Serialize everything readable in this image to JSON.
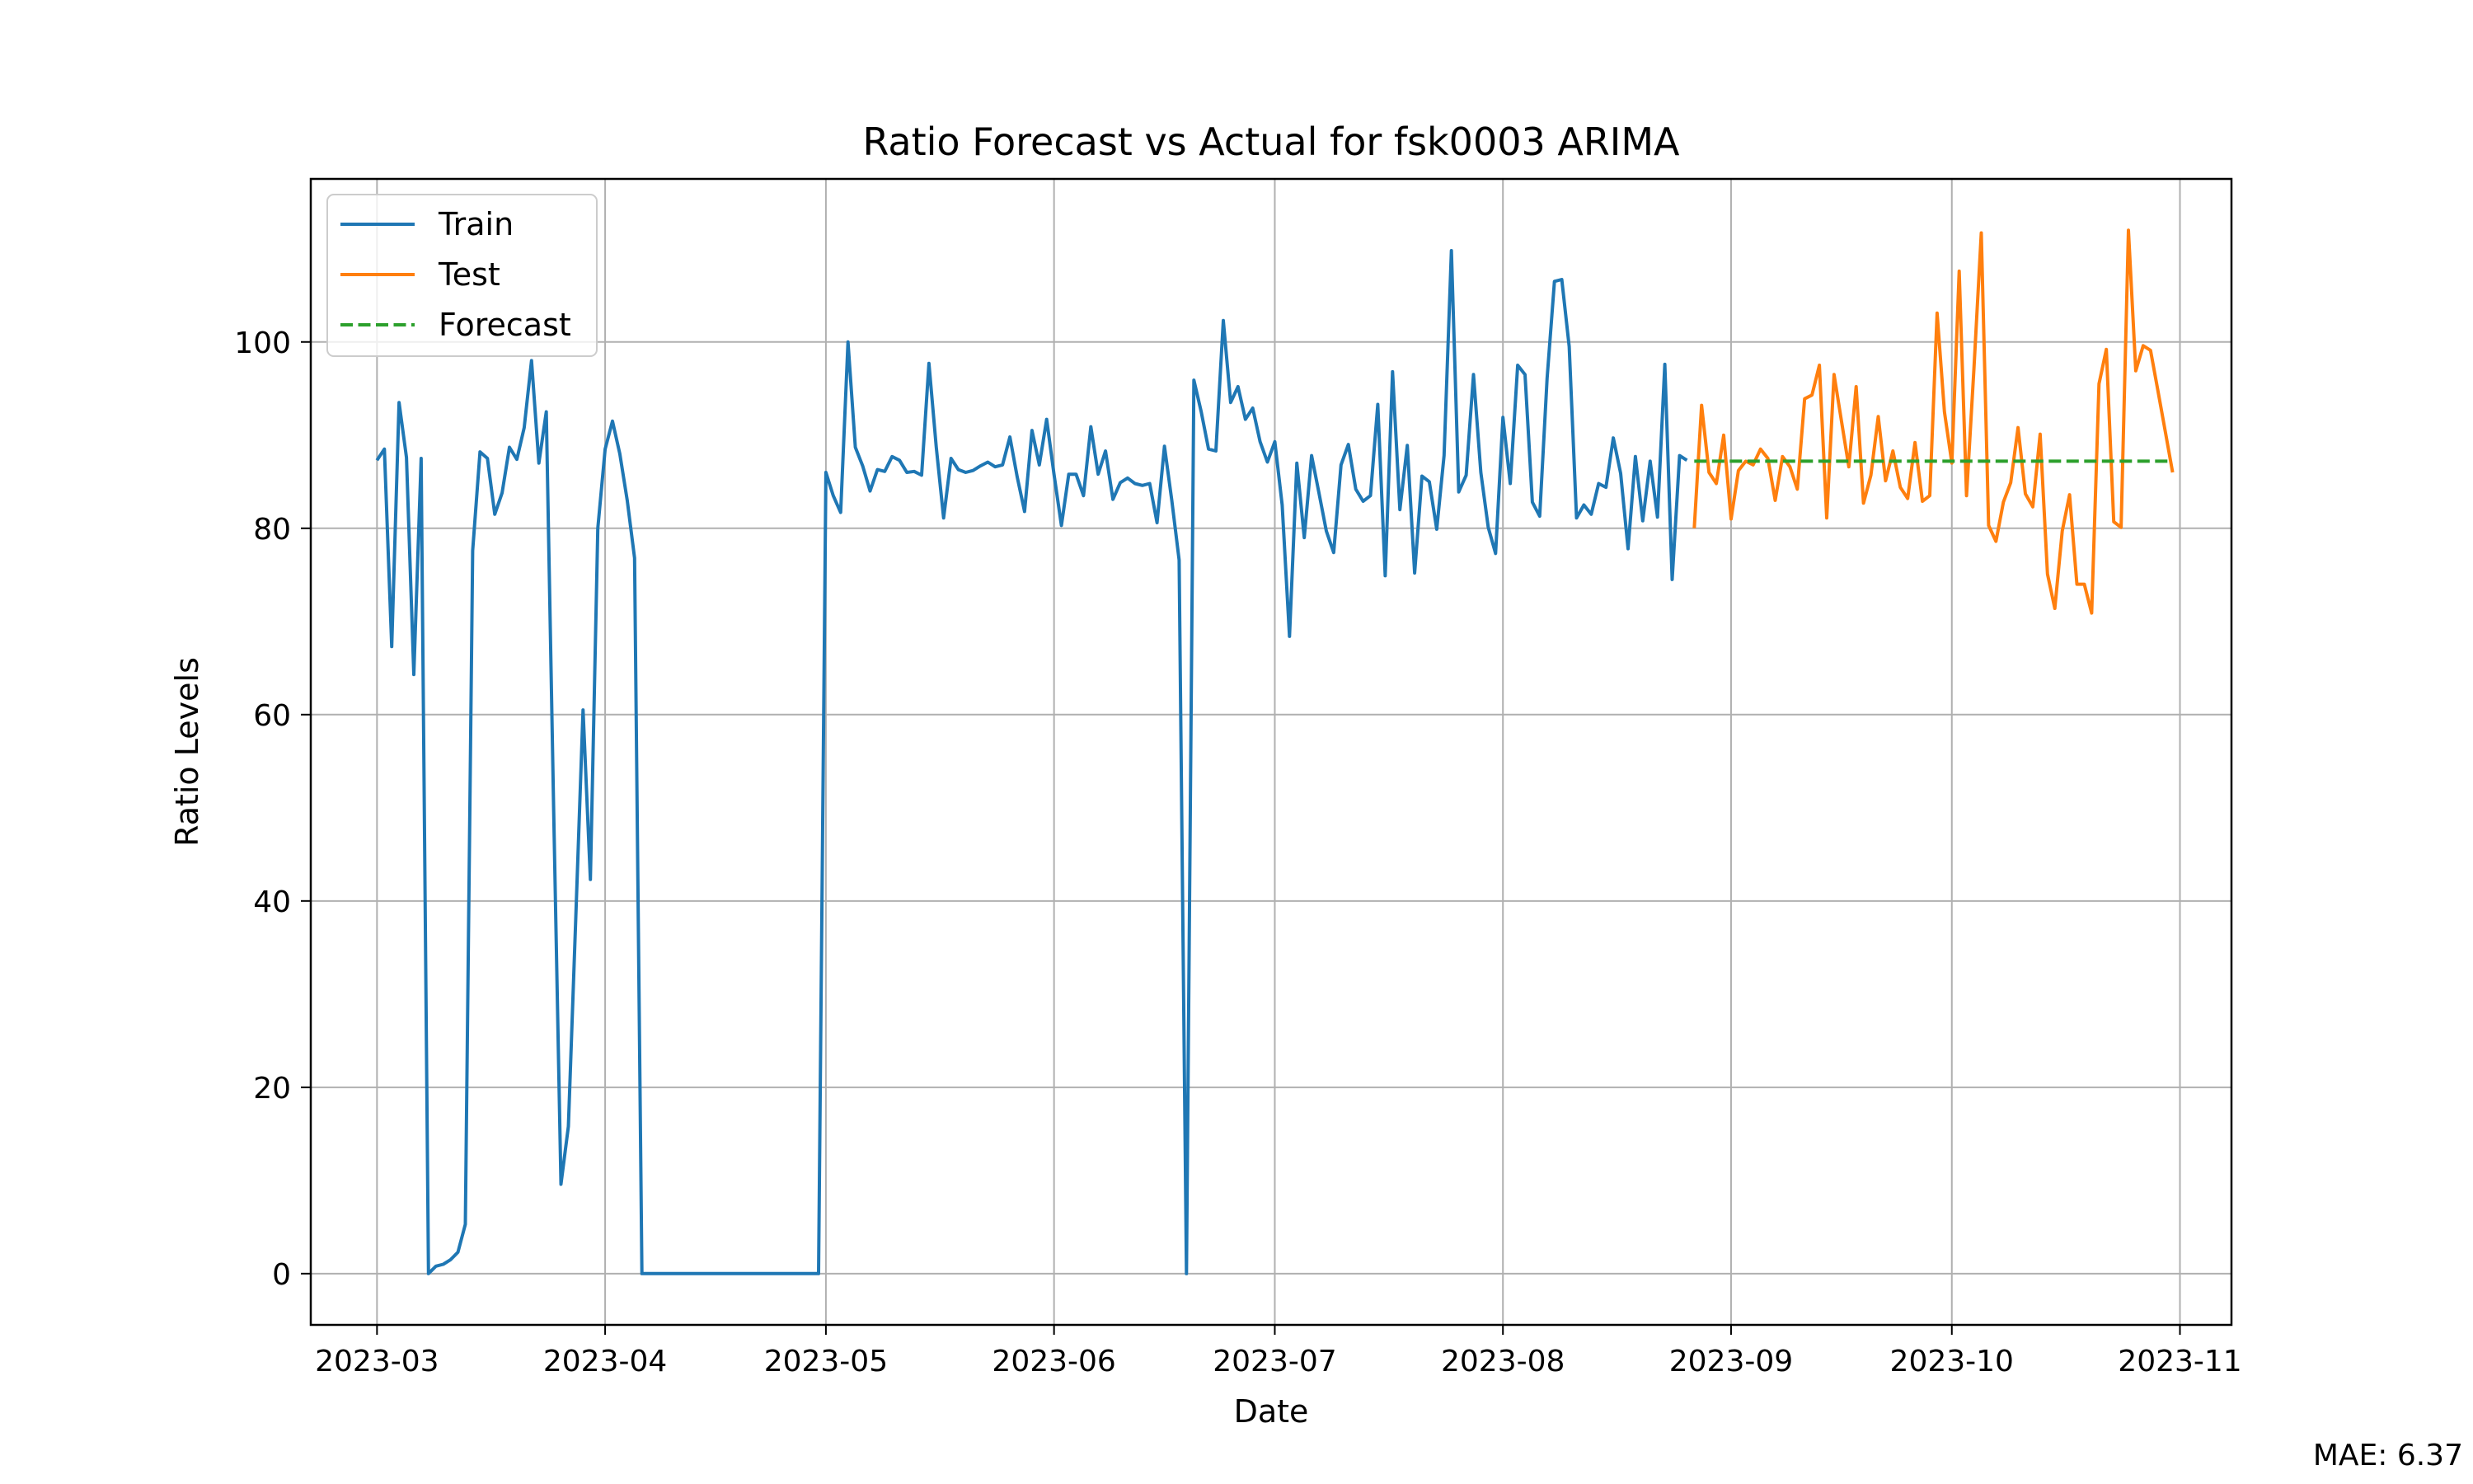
{
  "chart_data": {
    "type": "line",
    "title": "Ratio Forecast vs Actual for fsk0003 ARIMA",
    "xlabel": "Date",
    "ylabel": "Ratio Levels",
    "xlim": [
      "2023-02-20",
      "2023-11-08"
    ],
    "ylim": [
      -5.5,
      117.5
    ],
    "x_ticks": [
      "2023-03-01",
      "2023-04-01",
      "2023-05-01",
      "2023-06-01",
      "2023-07-01",
      "2023-08-01",
      "2023-09-01",
      "2023-10-01",
      "2023-11-01"
    ],
    "x_tick_labels": [
      "2023-03",
      "2023-04",
      "2023-05",
      "2023-06",
      "2023-07",
      "2023-08",
      "2023-09",
      "2023-10",
      "2023-11"
    ],
    "y_ticks": [
      0,
      20,
      40,
      60,
      80,
      100
    ],
    "y_tick_labels": [
      "0",
      "20",
      "40",
      "60",
      "80",
      "100"
    ],
    "grid": true,
    "legend_position": "top-left",
    "series": [
      {
        "name": "Train",
        "color": "#1f77b4",
        "style": "solid",
        "x": [
          "2023-03-01",
          "2023-03-02",
          "2023-03-03",
          "2023-03-04",
          "2023-03-05",
          "2023-03-06",
          "2023-03-07",
          "2023-03-08",
          "2023-03-09",
          "2023-03-10",
          "2023-03-11",
          "2023-03-12",
          "2023-03-13",
          "2023-03-14",
          "2023-03-15",
          "2023-03-16",
          "2023-03-17",
          "2023-03-18",
          "2023-03-19",
          "2023-03-20",
          "2023-03-21",
          "2023-03-22",
          "2023-03-23",
          "2023-03-24",
          "2023-03-25",
          "2023-03-26",
          "2023-03-27",
          "2023-03-28",
          "2023-03-29",
          "2023-03-30",
          "2023-03-31",
          "2023-04-01",
          "2023-04-02",
          "2023-04-03",
          "2023-04-04",
          "2023-04-05",
          "2023-04-06",
          "2023-04-29",
          "2023-04-30",
          "2023-05-01",
          "2023-05-02",
          "2023-05-03",
          "2023-05-04",
          "2023-05-05",
          "2023-05-06",
          "2023-05-07",
          "2023-05-08",
          "2023-05-09",
          "2023-05-10",
          "2023-05-11",
          "2023-05-12",
          "2023-05-13",
          "2023-05-14",
          "2023-05-15",
          "2023-05-16",
          "2023-05-17",
          "2023-05-18",
          "2023-05-19",
          "2023-05-20",
          "2023-05-21",
          "2023-05-22",
          "2023-05-23",
          "2023-05-24",
          "2023-05-25",
          "2023-05-26",
          "2023-05-27",
          "2023-05-28",
          "2023-05-29",
          "2023-05-30",
          "2023-05-31",
          "2023-06-01",
          "2023-06-02",
          "2023-06-03",
          "2023-06-04",
          "2023-06-05",
          "2023-06-06",
          "2023-06-07",
          "2023-06-08",
          "2023-06-09",
          "2023-06-10",
          "2023-06-11",
          "2023-06-12",
          "2023-06-13",
          "2023-06-14",
          "2023-06-15",
          "2023-06-16",
          "2023-06-17",
          "2023-06-18",
          "2023-06-19",
          "2023-06-20",
          "2023-06-21",
          "2023-06-22",
          "2023-06-23",
          "2023-06-24",
          "2023-06-25",
          "2023-06-26",
          "2023-06-27",
          "2023-06-28",
          "2023-06-29",
          "2023-06-30",
          "2023-07-01",
          "2023-07-02",
          "2023-07-03",
          "2023-07-04",
          "2023-07-05",
          "2023-07-06",
          "2023-07-07",
          "2023-07-08",
          "2023-07-09",
          "2023-07-10",
          "2023-07-11",
          "2023-07-12",
          "2023-07-13",
          "2023-07-14",
          "2023-07-15",
          "2023-07-16",
          "2023-07-17",
          "2023-07-18",
          "2023-07-19",
          "2023-07-20",
          "2023-07-21",
          "2023-07-22",
          "2023-07-23",
          "2023-07-24",
          "2023-07-25",
          "2023-07-26",
          "2023-07-27",
          "2023-07-28",
          "2023-07-29",
          "2023-07-30",
          "2023-07-31",
          "2023-08-01",
          "2023-08-02",
          "2023-08-03",
          "2023-08-04",
          "2023-08-05",
          "2023-08-06",
          "2023-08-07",
          "2023-08-08",
          "2023-08-09",
          "2023-08-10",
          "2023-08-11",
          "2023-08-12",
          "2023-08-13",
          "2023-08-14",
          "2023-08-15",
          "2023-08-16",
          "2023-08-17",
          "2023-08-18",
          "2023-08-19",
          "2023-08-20",
          "2023-08-21",
          "2023-08-22",
          "2023-08-23",
          "2023-08-24",
          "2023-08-25",
          "2023-08-26"
        ],
        "y": [
          87.3,
          88.5,
          67.3,
          93.5,
          87.6,
          64.3,
          87.5,
          0.0,
          0.8,
          1.0,
          1.5,
          2.3,
          5.3,
          77.6,
          88.2,
          87.5,
          81.5,
          83.8,
          88.7,
          87.4,
          90.8,
          98.0,
          87.0,
          92.5,
          50.0,
          9.6,
          15.8,
          38.0,
          60.5,
          42.3,
          80.0,
          88.5,
          91.5,
          88.0,
          83.0,
          76.8,
          0.0,
          0.0,
          0.0,
          86.0,
          83.5,
          81.7,
          100.0,
          88.7,
          86.7,
          84.0,
          86.3,
          86.1,
          87.7,
          87.3,
          86.0,
          86.1,
          85.7,
          97.7,
          88.7,
          81.1,
          87.5,
          86.3,
          86.0,
          86.2,
          86.7,
          87.1,
          86.6,
          86.8,
          89.8,
          85.5,
          81.8,
          90.5,
          86.8,
          91.7,
          85.8,
          80.3,
          85.8,
          85.8,
          83.5,
          90.9,
          85.8,
          88.3,
          83.1,
          84.9,
          85.4,
          84.8,
          84.6,
          84.8,
          80.6,
          88.8,
          83.0,
          76.6,
          0.0,
          95.9,
          92.5,
          88.5,
          88.3,
          102.3,
          93.5,
          95.2,
          91.7,
          92.9,
          89.3,
          87.1,
          89.3,
          82.5,
          68.4,
          87.0,
          79.0,
          87.8,
          83.8,
          79.7,
          77.4,
          86.8,
          89.0,
          84.2,
          82.9,
          83.5,
          93.3,
          74.9,
          96.8,
          82.0,
          88.9,
          75.2,
          85.6,
          85.0,
          79.9,
          87.8,
          109.8,
          83.9,
          85.7,
          96.5,
          86.0,
          80.1,
          77.3,
          91.9,
          84.8,
          97.5,
          96.5,
          82.8,
          81.3,
          96.1,
          106.5,
          106.7,
          99.5,
          81.1,
          82.5,
          81.5,
          84.8,
          84.4,
          89.7,
          85.9,
          77.8,
          87.7,
          80.8,
          87.2,
          81.2,
          97.6,
          74.5,
          87.8,
          87.3
        ]
      },
      {
        "name": "Test",
        "color": "#ff7f0e",
        "style": "solid",
        "x": [
          "2023-08-27",
          "2023-08-28",
          "2023-08-29",
          "2023-08-30",
          "2023-08-31",
          "2023-09-01",
          "2023-09-02",
          "2023-09-03",
          "2023-09-04",
          "2023-09-05",
          "2023-09-06",
          "2023-09-07",
          "2023-09-08",
          "2023-09-09",
          "2023-09-10",
          "2023-09-11",
          "2023-09-12",
          "2023-09-13",
          "2023-09-14",
          "2023-09-15",
          "2023-09-16",
          "2023-09-17",
          "2023-09-18",
          "2023-09-19",
          "2023-09-20",
          "2023-09-21",
          "2023-09-22",
          "2023-09-23",
          "2023-09-24",
          "2023-09-25",
          "2023-09-26",
          "2023-09-27",
          "2023-09-28",
          "2023-09-29",
          "2023-09-30",
          "2023-10-01",
          "2023-10-02",
          "2023-10-03",
          "2023-10-04",
          "2023-10-05",
          "2023-10-06",
          "2023-10-07",
          "2023-10-08",
          "2023-10-09",
          "2023-10-10",
          "2023-10-11",
          "2023-10-12",
          "2023-10-13",
          "2023-10-14",
          "2023-10-15",
          "2023-10-16",
          "2023-10-17",
          "2023-10-18",
          "2023-10-19",
          "2023-10-20",
          "2023-10-21",
          "2023-10-22",
          "2023-10-23",
          "2023-10-24",
          "2023-10-25",
          "2023-10-26",
          "2023-10-27",
          "2023-10-28",
          "2023-10-29",
          "2023-10-30",
          "2023-10-31"
        ],
        "y": [
          80.0,
          93.2,
          86.0,
          84.8,
          90.0,
          81.0,
          86.2,
          87.2,
          86.8,
          88.5,
          87.5,
          83.0,
          87.7,
          86.6,
          84.2,
          93.9,
          94.3,
          97.5,
          81.1,
          96.5,
          91.5,
          86.6,
          95.2,
          82.7,
          85.7,
          92.0,
          85.1,
          88.3,
          84.4,
          83.2,
          89.2,
          82.9,
          83.5,
          103.1,
          92.5,
          87.0,
          107.6,
          83.5,
          97.0,
          111.7,
          80.3,
          78.6,
          82.8,
          84.9,
          90.8,
          83.7,
          82.3,
          90.1,
          75.1,
          71.4,
          79.7,
          83.6,
          74.0,
          74.0,
          70.9,
          95.5,
          99.2,
          80.7,
          80.1,
          112.0,
          96.9,
          99.6,
          99.1,
          94.8,
          90.4,
          86.0
        ]
      },
      {
        "name": "Forecast",
        "color": "#2ca02c",
        "style": "dashed",
        "x": [
          "2023-08-27",
          "2023-10-31"
        ],
        "y": [
          87.2,
          87.2
        ]
      }
    ],
    "annotation": "MAE: 6.37"
  }
}
